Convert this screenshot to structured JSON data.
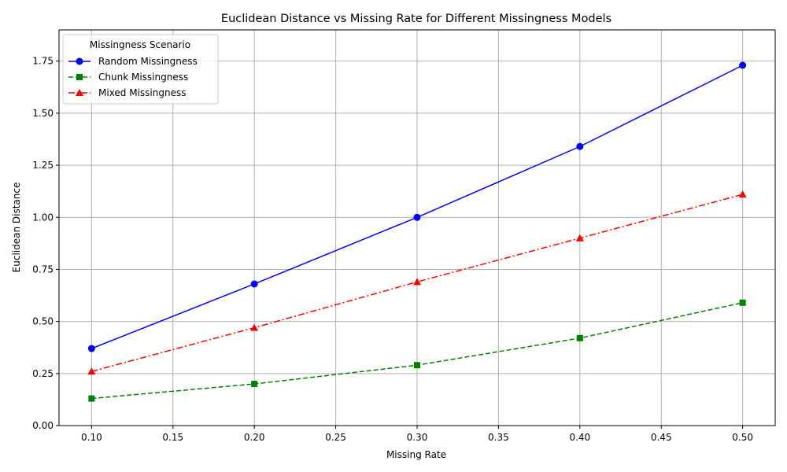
{
  "chart_data": {
    "type": "line",
    "title": "Euclidean Distance vs Missing Rate for Different Missingness Models",
    "xlabel": "Missing Rate",
    "ylabel": "Euclidean Distance",
    "x": [
      0.1,
      0.2,
      0.3,
      0.4,
      0.5
    ],
    "xlim": [
      0.08,
      0.52
    ],
    "ylim": [
      0.0,
      1.9
    ],
    "xticks": [
      "0.10",
      "0.15",
      "0.20",
      "0.25",
      "0.30",
      "0.35",
      "0.40",
      "0.45",
      "0.50"
    ],
    "yticks": [
      "0.00",
      "0.25",
      "0.50",
      "0.75",
      "1.00",
      "1.25",
      "1.50",
      "1.75"
    ],
    "grid": true,
    "legend": {
      "title": "Missingness Scenario",
      "placement": "top-left"
    },
    "series": [
      {
        "name": "Random Missingness",
        "values": [
          0.37,
          0.68,
          1.0,
          1.34,
          1.73
        ],
        "color": "#0000ff",
        "marker": "circle",
        "linestyle": "solid"
      },
      {
        "name": "Chunk Missingness",
        "values": [
          0.13,
          0.2,
          0.29,
          0.42,
          0.59
        ],
        "color": "#008000",
        "marker": "square",
        "linestyle": "dashed"
      },
      {
        "name": "Mixed Missingness",
        "values": [
          0.26,
          0.47,
          0.69,
          0.9,
          1.11
        ],
        "color": "#ff0000",
        "marker": "triangle",
        "linestyle": "dashdot"
      }
    ]
  }
}
